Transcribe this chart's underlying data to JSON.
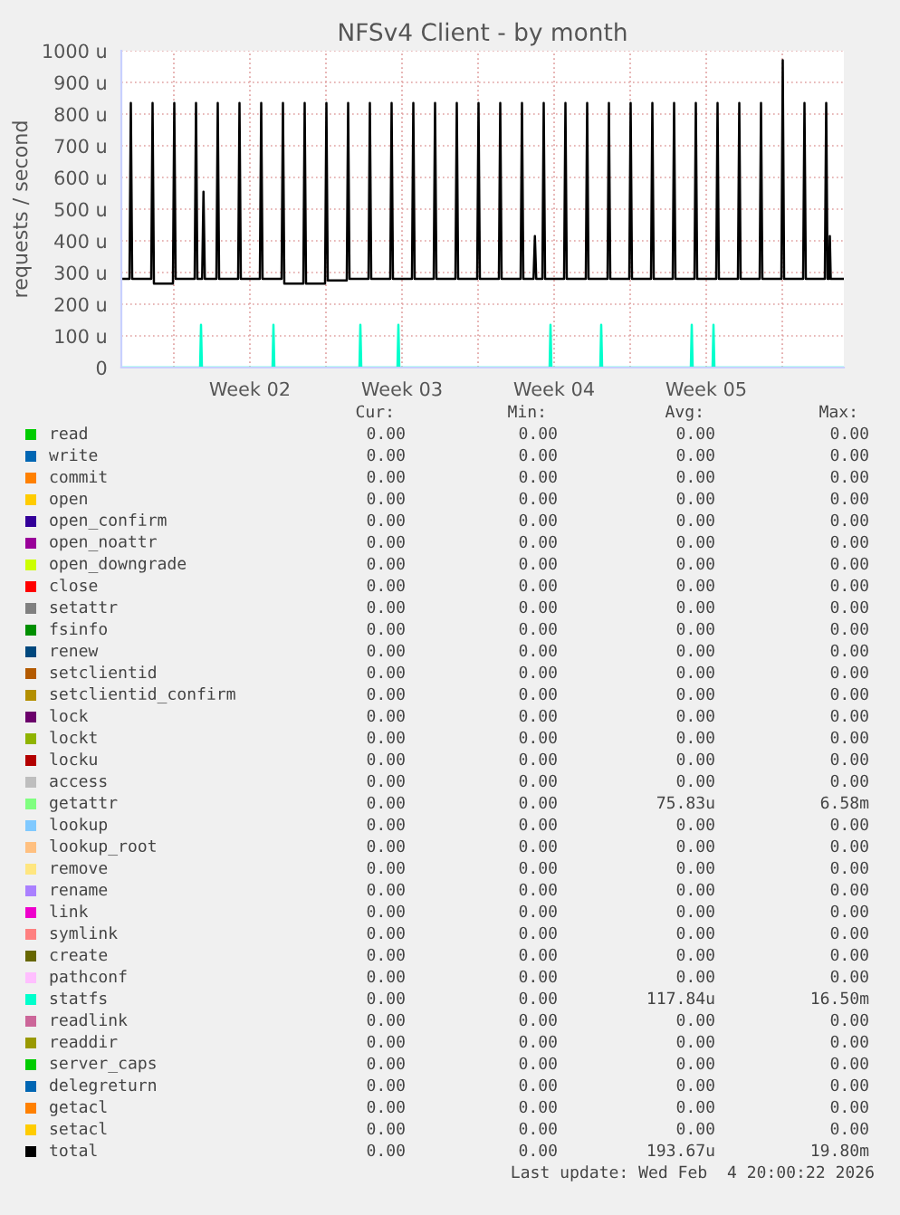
{
  "chart_data": {
    "type": "line",
    "title": "NFSv4 Client - by month",
    "ylabel": "requests / second",
    "xlim": [
      "2026-01-02T14:00",
      "2026-02-04T20:00"
    ],
    "xticks": [
      {
        "value": "2026-01-05T00:00",
        "label": null
      },
      {
        "value": "2026-01-08T12:00",
        "label": "Week 02"
      },
      {
        "value": "2026-01-12T00:00",
        "label": null
      },
      {
        "value": "2026-01-15T12:00",
        "label": "Week 03"
      },
      {
        "value": "2026-01-19T00:00",
        "label": null
      },
      {
        "value": "2026-01-22T12:00",
        "label": "Week 04"
      },
      {
        "value": "2026-01-26T00:00",
        "label": null
      },
      {
        "value": "2026-01-29T12:00",
        "label": "Week 05"
      },
      {
        "value": "2026-02-02T00:00",
        "label": null
      }
    ],
    "ylim": [
      0,
      1000
    ],
    "yticks": [
      {
        "value": 0,
        "label": "0"
      },
      {
        "value": 100,
        "label": "100 u"
      },
      {
        "value": 200,
        "label": "200 u"
      },
      {
        "value": 300,
        "label": "300 u"
      },
      {
        "value": 400,
        "label": "400 u"
      },
      {
        "value": 500,
        "label": "500 u"
      },
      {
        "value": 600,
        "label": "600 u"
      },
      {
        "value": 700,
        "label": "700 u"
      },
      {
        "value": 800,
        "label": "800 u"
      },
      {
        "value": 900,
        "label": "900 u"
      },
      {
        "value": 1000,
        "label": "1000 u"
      }
    ],
    "grid": true,
    "legend": "bottom",
    "series": [
      {
        "name": "read",
        "color": "#00cc00"
      },
      {
        "name": "write",
        "color": "#0066b3"
      },
      {
        "name": "commit",
        "color": "#ff8000"
      },
      {
        "name": "open",
        "color": "#ffcc00"
      },
      {
        "name": "open_confirm",
        "color": "#330099"
      },
      {
        "name": "open_noattr",
        "color": "#990099"
      },
      {
        "name": "open_downgrade",
        "color": "#ccff00"
      },
      {
        "name": "close",
        "color": "#ff0000"
      },
      {
        "name": "setattr",
        "color": "#808080"
      },
      {
        "name": "fsinfo",
        "color": "#008f00"
      },
      {
        "name": "renew",
        "color": "#00487d"
      },
      {
        "name": "setclientid",
        "color": "#b35a00"
      },
      {
        "name": "setclientid_confirm",
        "color": "#b38f00"
      },
      {
        "name": "lock",
        "color": "#6b006b"
      },
      {
        "name": "lockt",
        "color": "#8fb300"
      },
      {
        "name": "locku",
        "color": "#b30000"
      },
      {
        "name": "access",
        "color": "#bebebe"
      },
      {
        "name": "getattr",
        "color": "#80ff80"
      },
      {
        "name": "lookup",
        "color": "#80c9ff"
      },
      {
        "name": "lookup_root",
        "color": "#ffc080"
      },
      {
        "name": "remove",
        "color": "#ffe680"
      },
      {
        "name": "rename",
        "color": "#aa80ff"
      },
      {
        "name": "link",
        "color": "#ee00cc"
      },
      {
        "name": "symlink",
        "color": "#ff8080"
      },
      {
        "name": "create",
        "color": "#666600"
      },
      {
        "name": "pathconf",
        "color": "#ffbfff"
      },
      {
        "name": "statfs",
        "color": "#00ffcc",
        "x": [
          "2026-01-02T14:00",
          "2026-01-06T05:00",
          "2026-01-06T06:00",
          "2026-01-06T07:00",
          "2026-01-09T13:00",
          "2026-01-09T14:00",
          "2026-01-09T15:00",
          "2026-01-13T13:00",
          "2026-01-13T14:00",
          "2026-01-13T15:00",
          "2026-01-15T07:00",
          "2026-01-15T08:00",
          "2026-01-15T09:00",
          "2026-01-22T07:00",
          "2026-01-22T08:00",
          "2026-01-22T09:00",
          "2026-01-24T15:00",
          "2026-01-24T16:00",
          "2026-01-24T17:00",
          "2026-01-28T19:00",
          "2026-01-28T20:00",
          "2026-01-28T21:00",
          "2026-01-29T19:00",
          "2026-01-29T20:00",
          "2026-01-29T21:00",
          "2026-02-04T20:00"
        ],
        "values": [
          0,
          0,
          135,
          0,
          0,
          135,
          0,
          0,
          135,
          0,
          0,
          135,
          0,
          0,
          135,
          0,
          0,
          135,
          0,
          0,
          135,
          0,
          0,
          135,
          0,
          0
        ]
      },
      {
        "name": "readlink",
        "color": "#cc6699"
      },
      {
        "name": "readdir",
        "color": "#999900"
      },
      {
        "name": "server_caps",
        "color": "#00cc00"
      },
      {
        "name": "delegreturn",
        "color": "#0066b3"
      },
      {
        "name": "getacl",
        "color": "#ff8000"
      },
      {
        "name": "setacl",
        "color": "#ffcc00"
      },
      {
        "name": "total",
        "color": "#000000",
        "x": [
          "2026-01-02T14:00",
          "2026-01-02T23:00",
          "2026-01-03T00:30",
          "2026-01-03T02:00",
          "2026-01-03T23:00",
          "2026-01-04T00:30",
          "2026-01-04T02:00",
          "2026-01-04T23:00",
          "2026-01-05T00:30",
          "2026-01-05T02:00",
          "2026-01-05T23:00",
          "2026-01-06T00:30",
          "2026-01-06T02:00",
          "2026-01-06T07:15",
          "2026-01-06T08:45",
          "2026-01-06T10:15",
          "2026-01-06T23:00",
          "2026-01-07T00:30",
          "2026-01-07T02:00",
          "2026-01-07T23:00",
          "2026-01-08T00:30",
          "2026-01-08T02:00",
          "2026-01-08T23:00",
          "2026-01-09T00:30",
          "2026-01-09T02:00",
          "2026-01-09T23:00",
          "2026-01-10T00:30",
          "2026-01-10T02:00",
          "2026-01-10T23:00",
          "2026-01-11T00:30",
          "2026-01-11T02:00",
          "2026-01-11T23:00",
          "2026-01-12T00:30",
          "2026-01-12T02:00",
          "2026-01-12T23:00",
          "2026-01-13T00:30",
          "2026-01-13T02:00",
          "2026-01-13T23:00",
          "2026-01-14T00:30",
          "2026-01-14T02:00",
          "2026-01-14T23:00",
          "2026-01-15T00:30",
          "2026-01-15T02:00",
          "2026-01-15T23:00",
          "2026-01-16T00:30",
          "2026-01-16T02:00",
          "2026-01-16T23:00",
          "2026-01-17T00:30",
          "2026-01-17T02:00",
          "2026-01-17T23:00",
          "2026-01-18T00:30",
          "2026-01-18T02:00",
          "2026-01-18T23:00",
          "2026-01-19T00:30",
          "2026-01-19T02:00",
          "2026-01-19T23:00",
          "2026-01-20T00:30",
          "2026-01-20T02:00",
          "2026-01-20T23:00",
          "2026-01-21T00:30",
          "2026-01-21T02:00",
          "2026-01-21T13:15",
          "2026-01-21T14:45",
          "2026-01-21T16:15",
          "2026-01-21T23:00",
          "2026-01-22T00:30",
          "2026-01-22T02:00",
          "2026-01-22T23:00",
          "2026-01-23T00:30",
          "2026-01-23T02:00",
          "2026-01-23T23:00",
          "2026-01-24T00:30",
          "2026-01-24T02:00",
          "2026-01-24T23:00",
          "2026-01-25T00:30",
          "2026-01-25T02:00",
          "2026-01-25T23:00",
          "2026-01-26T00:30",
          "2026-01-26T02:00",
          "2026-01-26T23:00",
          "2026-01-27T00:30",
          "2026-01-27T02:00",
          "2026-01-27T23:00",
          "2026-01-28T00:30",
          "2026-01-28T02:00",
          "2026-01-28T23:00",
          "2026-01-29T00:30",
          "2026-01-29T02:00",
          "2026-01-29T23:00",
          "2026-01-30T00:30",
          "2026-01-30T02:00",
          "2026-01-30T23:00",
          "2026-01-31T00:30",
          "2026-01-31T02:00",
          "2026-01-31T23:00",
          "2026-02-01T00:30",
          "2026-02-01T02:00",
          "2026-02-01T23:00",
          "2026-02-02T00:30",
          "2026-02-02T02:00",
          "2026-02-02T23:00",
          "2026-02-03T00:30",
          "2026-02-03T02:00",
          "2026-02-03T23:00",
          "2026-02-04T00:30",
          "2026-02-04T02:00",
          "2026-02-04T03:30",
          "2026-02-04T04:30",
          "2026-02-04T05:30",
          "2026-02-04T20:00"
        ],
        "values": [
          280,
          280,
          835,
          280,
          280,
          835,
          265,
          265,
          835,
          280,
          280,
          835,
          280,
          280,
          555,
          280,
          280,
          835,
          280,
          280,
          835,
          280,
          280,
          835,
          280,
          280,
          835,
          265,
          265,
          835,
          265,
          265,
          835,
          275,
          275,
          835,
          280,
          280,
          835,
          280,
          280,
          835,
          280,
          280,
          835,
          280,
          280,
          835,
          280,
          280,
          835,
          280,
          280,
          835,
          280,
          280,
          835,
          280,
          280,
          835,
          280,
          280,
          415,
          280,
          280,
          835,
          280,
          280,
          835,
          280,
          280,
          835,
          280,
          280,
          835,
          280,
          280,
          835,
          280,
          280,
          835,
          280,
          280,
          835,
          280,
          280,
          835,
          280,
          280,
          835,
          280,
          280,
          835,
          280,
          280,
          835,
          280,
          280,
          970,
          280,
          280,
          835,
          280,
          280,
          835,
          280,
          280,
          415,
          280,
          280
        ]
      }
    ],
    "annotations": [
      "Cur:",
      "Min:",
      "Avg:",
      "Max:",
      "0.00",
      "0.00",
      "0.00",
      "0.00",
      "0.00",
      "0.00",
      "0.00",
      "0.00",
      "0.00",
      "0.00",
      "0.00",
      "0.00",
      "0.00",
      "0.00",
      "0.00",
      "0.00",
      "0.00",
      "0.00",
      "0.00",
      "0.00",
      "0.00",
      "0.00",
      "0.00",
      "0.00",
      "0.00",
      "0.00",
      "0.00",
      "0.00",
      "0.00",
      "0.00",
      "0.00",
      "0.00",
      "0.00",
      "0.00",
      "0.00",
      "0.00",
      "0.00",
      "0.00",
      "0.00",
      "0.00",
      "0.00",
      "0.00",
      "0.00",
      "0.00",
      "0.00",
      "0.00",
      "0.00",
      "0.00",
      "0.00",
      "0.00",
      "0.00",
      "0.00",
      "0.00",
      "0.00",
      "0.00",
      "0.00",
      "0.00",
      "0.00",
      "0.00",
      "0.00",
      "0.00",
      "0.00",
      "0.00",
      "0.00",
      "0.00",
      "0.00",
      "0.00",
      "0.00",
      "0.00",
      "0.00",
      "75.83u",
      "6.58m",
      "0.00",
      "0.00",
      "0.00",
      "0.00",
      "0.00",
      "0.00",
      "0.00",
      "0.00",
      "0.00",
      "0.00",
      "0.00",
      "0.00",
      "0.00",
      "0.00",
      "0.00",
      "0.00",
      "0.00",
      "0.00",
      "0.00",
      "0.00",
      "0.00",
      "0.00",
      "0.00",
      "0.00",
      "0.00",
      "0.00",
      "0.00",
      "0.00",
      "0.00",
      "0.00",
      "0.00",
      "0.00",
      "0.00",
      "0.00",
      "117.84u",
      "16.50m",
      "0.00",
      "0.00",
      "0.00",
      "0.00",
      "0.00",
      "0.00",
      "0.00",
      "0.00",
      "0.00",
      "0.00",
      "0.00",
      "0.00",
      "0.00",
      "0.00",
      "0.00",
      "0.00",
      "0.00",
      "0.00",
      "0.00",
      "0.00",
      "0.00",
      "0.00",
      "0.00",
      "0.00",
      "0.00",
      "0.00",
      "193.67u",
      "19.80m",
      "Last update: Wed Feb  4 20:00:22 2026"
    ]
  }
}
